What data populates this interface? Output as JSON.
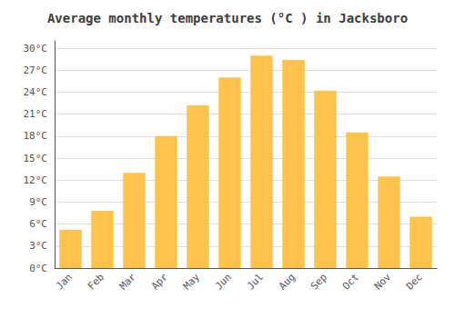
{
  "chart_data": {
    "type": "bar",
    "title": "Average monthly temperatures (°C ) in Jacksboro",
    "categories": [
      "Jan",
      "Feb",
      "Mar",
      "Apr",
      "May",
      "Jun",
      "Jul",
      "Aug",
      "Sep",
      "Oct",
      "Nov",
      "Dec"
    ],
    "values": [
      5.2,
      7.8,
      13.0,
      18.0,
      22.2,
      26.0,
      29.0,
      28.4,
      24.2,
      18.5,
      12.5,
      7.0
    ],
    "color": "#FFC34D",
    "ylim": [
      0,
      31
    ],
    "yticks": [
      {
        "value": 0,
        "label": "0°C"
      },
      {
        "value": 3,
        "label": "3°C"
      },
      {
        "value": 6,
        "label": "6°C"
      },
      {
        "value": 9,
        "label": "9°C"
      },
      {
        "value": 12,
        "label": "12°C"
      },
      {
        "value": 15,
        "label": "15°C"
      },
      {
        "value": 18,
        "label": "18°C"
      },
      {
        "value": 21,
        "label": "21°C"
      },
      {
        "value": 24,
        "label": "24°C"
      },
      {
        "value": 27,
        "label": "27°C"
      },
      {
        "value": 30,
        "label": "30°C"
      }
    ],
    "grid": true
  }
}
